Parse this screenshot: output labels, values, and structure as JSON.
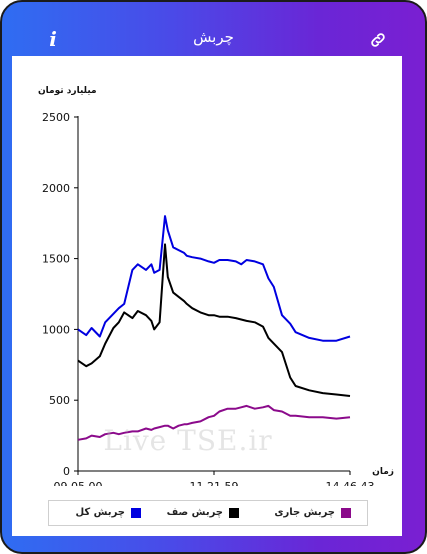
{
  "header": {
    "title": "چربش",
    "info_icon": "info-icon",
    "link_icon": "link-icon",
    "info_glyph": "i"
  },
  "colors": {
    "accent_start": "#2f6df2",
    "accent_end": "#7a1fd2"
  },
  "watermark": "Live TSE.ir",
  "chart_data": {
    "type": "line",
    "ylabel": "میلیارد تومان",
    "xlabel": "زمان",
    "ylim": [
      0,
      2500
    ],
    "yticks": [
      0,
      500,
      1000,
      1500,
      2000,
      2500
    ],
    "xticks": [
      "09.05.00",
      "11.21.59",
      "14.46.43"
    ],
    "grid": false,
    "legend_position": "bottom",
    "series": [
      {
        "name": "چربش کل",
        "color": "#0000e0",
        "x": [
          0,
          0.03,
          0.05,
          0.08,
          0.1,
          0.13,
          0.15,
          0.17,
          0.2,
          0.22,
          0.25,
          0.27,
          0.28,
          0.3,
          0.32,
          0.33,
          0.35,
          0.37,
          0.39,
          0.4,
          0.42,
          0.45,
          0.48,
          0.5,
          0.52,
          0.55,
          0.58,
          0.6,
          0.62,
          0.65,
          0.68,
          0.7,
          0.72,
          0.75,
          0.78,
          0.8,
          0.85,
          0.9,
          0.95,
          1.0
        ],
        "y": [
          1000,
          960,
          1010,
          950,
          1050,
          1110,
          1150,
          1180,
          1420,
          1460,
          1420,
          1460,
          1400,
          1420,
          1800,
          1700,
          1580,
          1560,
          1540,
          1520,
          1510,
          1500,
          1480,
          1470,
          1490,
          1490,
          1480,
          1460,
          1490,
          1480,
          1460,
          1360,
          1300,
          1100,
          1040,
          980,
          940,
          920,
          920,
          950
        ]
      },
      {
        "name": "چربش صف",
        "color": "#000000",
        "x": [
          0,
          0.03,
          0.05,
          0.08,
          0.1,
          0.13,
          0.15,
          0.17,
          0.2,
          0.22,
          0.25,
          0.27,
          0.28,
          0.3,
          0.32,
          0.33,
          0.35,
          0.37,
          0.39,
          0.4,
          0.42,
          0.45,
          0.48,
          0.5,
          0.52,
          0.55,
          0.58,
          0.6,
          0.62,
          0.65,
          0.68,
          0.7,
          0.72,
          0.75,
          0.78,
          0.8,
          0.85,
          0.9,
          0.95,
          1.0
        ],
        "y": [
          780,
          740,
          760,
          810,
          900,
          1010,
          1050,
          1120,
          1080,
          1130,
          1100,
          1060,
          1000,
          1050,
          1600,
          1370,
          1260,
          1230,
          1200,
          1180,
          1150,
          1120,
          1100,
          1100,
          1090,
          1090,
          1080,
          1070,
          1060,
          1050,
          1020,
          940,
          900,
          840,
          660,
          600,
          570,
          550,
          540,
          530
        ]
      },
      {
        "name": "چربش جاری",
        "color": "#8b0a8b",
        "x": [
          0,
          0.03,
          0.05,
          0.08,
          0.1,
          0.13,
          0.15,
          0.17,
          0.2,
          0.22,
          0.25,
          0.27,
          0.28,
          0.3,
          0.32,
          0.33,
          0.35,
          0.37,
          0.39,
          0.4,
          0.42,
          0.45,
          0.48,
          0.5,
          0.52,
          0.55,
          0.58,
          0.6,
          0.62,
          0.65,
          0.68,
          0.7,
          0.72,
          0.75,
          0.78,
          0.8,
          0.85,
          0.9,
          0.95,
          1.0
        ],
        "y": [
          220,
          230,
          250,
          240,
          260,
          270,
          260,
          270,
          280,
          280,
          300,
          290,
          300,
          310,
          320,
          320,
          300,
          320,
          330,
          330,
          340,
          350,
          380,
          390,
          420,
          440,
          440,
          450,
          460,
          440,
          450,
          460,
          430,
          420,
          390,
          390,
          380,
          380,
          370,
          380
        ]
      }
    ]
  }
}
